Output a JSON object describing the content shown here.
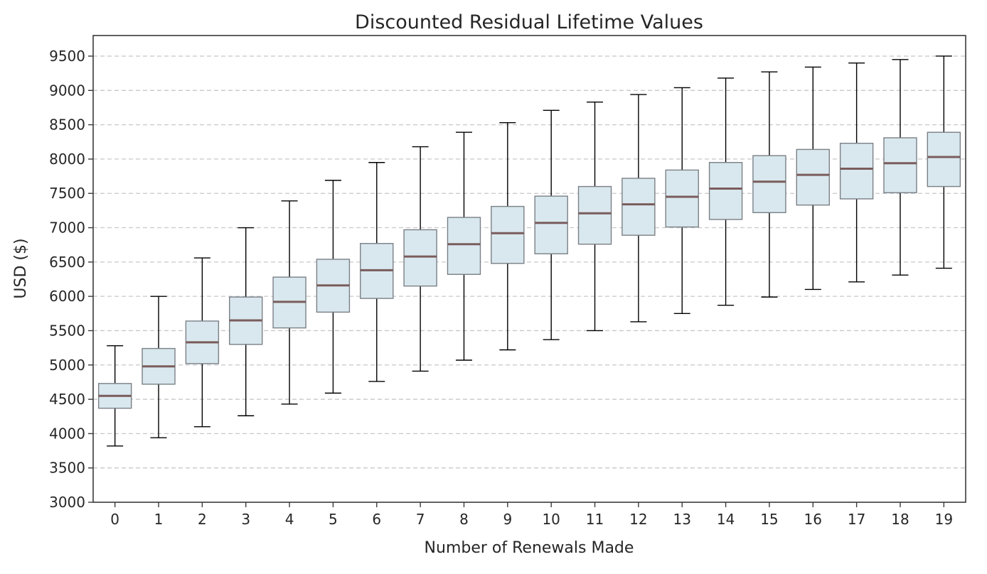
{
  "chart_data": {
    "type": "box",
    "title": "Discounted Residual Lifetime Values",
    "xlabel": "Number of Renewals Made",
    "ylabel": "USD ($)",
    "ylim": [
      3000,
      9800
    ],
    "yticks": [
      3000,
      3500,
      4000,
      4500,
      5000,
      5500,
      6000,
      6500,
      7000,
      7500,
      8000,
      8500,
      9000,
      9500
    ],
    "grid": "horizontal-dashed",
    "categories": [
      "0",
      "1",
      "2",
      "3",
      "4",
      "5",
      "6",
      "7",
      "8",
      "9",
      "10",
      "11",
      "12",
      "13",
      "14",
      "15",
      "16",
      "17",
      "18",
      "19"
    ],
    "box_color": "#d9e8ee",
    "median_color": "#7a5c5c",
    "boxes": [
      {
        "min": 3820,
        "q1": 4370,
        "median": 4550,
        "q3": 4730,
        "max": 5280
      },
      {
        "min": 3940,
        "q1": 4720,
        "median": 4980,
        "q3": 5240,
        "max": 6000
      },
      {
        "min": 4100,
        "q1": 5020,
        "median": 5330,
        "q3": 5640,
        "max": 6560
      },
      {
        "min": 4260,
        "q1": 5300,
        "median": 5650,
        "q3": 5990,
        "max": 7000
      },
      {
        "min": 4430,
        "q1": 5540,
        "median": 5920,
        "q3": 6280,
        "max": 7390
      },
      {
        "min": 4590,
        "q1": 5770,
        "median": 6160,
        "q3": 6540,
        "max": 7690
      },
      {
        "min": 4760,
        "q1": 5970,
        "median": 6380,
        "q3": 6770,
        "max": 7950
      },
      {
        "min": 4910,
        "q1": 6150,
        "median": 6580,
        "q3": 6970,
        "max": 8180
      },
      {
        "min": 5070,
        "q1": 6320,
        "median": 6760,
        "q3": 7150,
        "max": 8390
      },
      {
        "min": 5220,
        "q1": 6480,
        "median": 6920,
        "q3": 7310,
        "max": 8530
      },
      {
        "min": 5370,
        "q1": 6620,
        "median": 7070,
        "q3": 7460,
        "max": 8710
      },
      {
        "min": 5500,
        "q1": 6760,
        "median": 7210,
        "q3": 7600,
        "max": 8830
      },
      {
        "min": 5630,
        "q1": 6890,
        "median": 7340,
        "q3": 7720,
        "max": 8940
      },
      {
        "min": 5750,
        "q1": 7010,
        "median": 7450,
        "q3": 7840,
        "max": 9040
      },
      {
        "min": 5870,
        "q1": 7120,
        "median": 7570,
        "q3": 7950,
        "max": 9180
      },
      {
        "min": 5990,
        "q1": 7220,
        "median": 7670,
        "q3": 8050,
        "max": 9270
      },
      {
        "min": 6100,
        "q1": 7330,
        "median": 7770,
        "q3": 8140,
        "max": 9340
      },
      {
        "min": 6210,
        "q1": 7420,
        "median": 7860,
        "q3": 8230,
        "max": 9400
      },
      {
        "min": 6310,
        "q1": 7510,
        "median": 7940,
        "q3": 8310,
        "max": 9450
      },
      {
        "min": 6410,
        "q1": 7600,
        "median": 8030,
        "q3": 8390,
        "max": 9500
      }
    ]
  }
}
